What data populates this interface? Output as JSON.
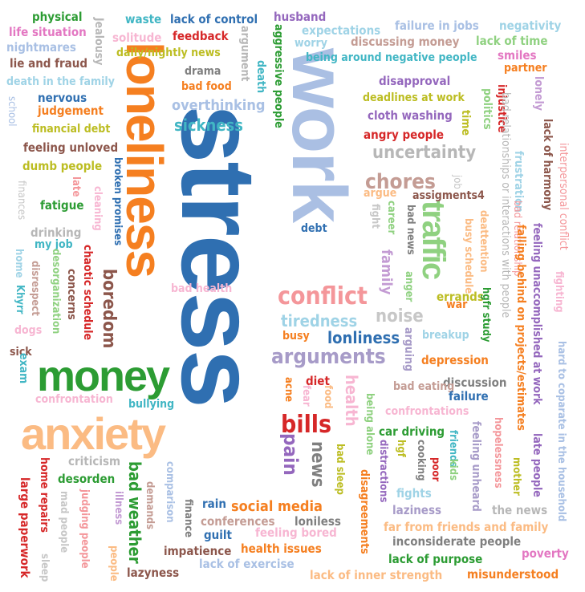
{
  "words": [
    {
      "text": "stress",
      "color": "#2f6fb1"
    },
    {
      "text": "work",
      "color": "#aabfe3"
    },
    {
      "text": "loneliness",
      "color": "#f57f20"
    },
    {
      "text": "anxiety",
      "color": "#fbbb83"
    },
    {
      "text": "money",
      "color": "#2c9c33"
    },
    {
      "text": "traffic",
      "color": "#8fd180"
    },
    {
      "text": "conflict",
      "color": "#f4969a"
    },
    {
      "text": "arguments",
      "color": "#a79bc8"
    },
    {
      "text": "bills",
      "color": "#d62728"
    },
    {
      "text": "boredom",
      "color": "#8c564b"
    },
    {
      "text": "pain",
      "color": "#9467bd"
    },
    {
      "text": "chores",
      "color": "#c49c94"
    },
    {
      "text": "uncertainty",
      "color": "#b7b7b7"
    },
    {
      "text": "sickness",
      "color": "#41b6c4"
    },
    {
      "text": "tiredness",
      "color": "#9fd3e6"
    },
    {
      "text": "overthinking",
      "color": "#a9c0e4"
    },
    {
      "text": "noise",
      "color": "#c7c7c7"
    },
    {
      "text": "family",
      "color": "#c39bd3"
    },
    {
      "text": "health",
      "color": "#f7b6d2"
    },
    {
      "text": "news",
      "color": "#7f7f7f"
    },
    {
      "text": "lonliness",
      "color": "#2f6fb1"
    },
    {
      "text": "social media",
      "color": "#f57f20"
    },
    {
      "text": "bad weather",
      "color": "#2c9c33"
    },
    {
      "text": "physical",
      "color": "#2c9c33"
    },
    {
      "text": "life situation",
      "color": "#e377c2"
    },
    {
      "text": "nightmares",
      "color": "#a9c0e4"
    },
    {
      "text": "lie and fraud",
      "color": "#8c564b"
    },
    {
      "text": "death in the family",
      "color": "#9fd3e6"
    },
    {
      "text": "nervous",
      "color": "#2f6fb1"
    },
    {
      "text": "judgement",
      "color": "#f57f20"
    },
    {
      "text": "financial debt",
      "color": "#bcbd22"
    },
    {
      "text": "feeling unloved",
      "color": "#8c564b"
    },
    {
      "text": "dumb people",
      "color": "#bcbd22"
    },
    {
      "text": "fatigue",
      "color": "#2c9c33"
    },
    {
      "text": "drinking",
      "color": "#b7b7b7"
    },
    {
      "text": "my job",
      "color": "#41b6c4"
    },
    {
      "text": "waste",
      "color": "#41b6c4"
    },
    {
      "text": "lack of control",
      "color": "#2f6fb1"
    },
    {
      "text": "husband",
      "color": "#9467bd"
    },
    {
      "text": "expectations",
      "color": "#9fd3e6"
    },
    {
      "text": "failure in jobs",
      "color": "#a9c0e4"
    },
    {
      "text": "negativity",
      "color": "#9fd3e6"
    },
    {
      "text": "solitude",
      "color": "#f7b6d2"
    },
    {
      "text": "feedback",
      "color": "#d62728"
    },
    {
      "text": "worry",
      "color": "#9fd3e6"
    },
    {
      "text": "discussing money",
      "color": "#c49c94"
    },
    {
      "text": "lack of time",
      "color": "#8fd180"
    },
    {
      "text": "daily/nightly news",
      "color": "#bcbd22"
    },
    {
      "text": "being around negative people",
      "color": "#41b6c4"
    },
    {
      "text": "smiles",
      "color": "#e377c2"
    },
    {
      "text": "partner",
      "color": "#f57f20"
    },
    {
      "text": "drama",
      "color": "#7f7f7f"
    },
    {
      "text": "bad food",
      "color": "#f57f20"
    },
    {
      "text": "disapproval",
      "color": "#9467bd"
    },
    {
      "text": "deadlines at work",
      "color": "#bcbd22"
    },
    {
      "text": "cloth washing",
      "color": "#9467bd"
    },
    {
      "text": "angry people",
      "color": "#d62728"
    },
    {
      "text": "assigments4",
      "color": "#8c564b"
    },
    {
      "text": "debt",
      "color": "#2f6fb1"
    },
    {
      "text": "bad health",
      "color": "#f7b6d2"
    },
    {
      "text": "errands",
      "color": "#bcbd22"
    },
    {
      "text": "busy",
      "color": "#f57f20"
    },
    {
      "text": "breakup",
      "color": "#9fd3e6"
    },
    {
      "text": "depression",
      "color": "#f57f20"
    },
    {
      "text": "sick",
      "color": "#8c564b"
    },
    {
      "text": "confrontation",
      "color": "#f7b6d2"
    },
    {
      "text": "bullying",
      "color": "#41b6c4"
    },
    {
      "text": "diet",
      "color": "#d62728"
    },
    {
      "text": "discussion",
      "color": "#7f7f7f"
    },
    {
      "text": "bad eating",
      "color": "#c49c94"
    },
    {
      "text": "failure",
      "color": "#2f6fb1"
    },
    {
      "text": "confrontations",
      "color": "#f7b6d2"
    },
    {
      "text": "car driving",
      "color": "#2c9c33"
    },
    {
      "text": "desorden",
      "color": "#2c9c33"
    },
    {
      "text": "criticism",
      "color": "#b7b7b7"
    },
    {
      "text": "rain",
      "color": "#2f6fb1"
    },
    {
      "text": "conferences",
      "color": "#c49c94"
    },
    {
      "text": "loniless",
      "color": "#7f7f7f"
    },
    {
      "text": "guilt",
      "color": "#2f6fb1"
    },
    {
      "text": "feeling bored",
      "color": "#f7b6d2"
    },
    {
      "text": "impatience",
      "color": "#8c564b"
    },
    {
      "text": "health issues",
      "color": "#f57f20"
    },
    {
      "text": "lack of exercise",
      "color": "#a9c0e4"
    },
    {
      "text": "lazyness",
      "color": "#8c564b"
    },
    {
      "text": "fights",
      "color": "#9fd3e6"
    },
    {
      "text": "laziness",
      "color": "#a79bc8"
    },
    {
      "text": "the news",
      "color": "#b7b7b7"
    },
    {
      "text": "far from friends and family",
      "color": "#fbbb83"
    },
    {
      "text": "inconsiderate people",
      "color": "#7f7f7f"
    },
    {
      "text": "poverty",
      "color": "#e377c2"
    },
    {
      "text": "lack of purpose",
      "color": "#2c9c33"
    },
    {
      "text": "misunderstood",
      "color": "#f57f20"
    },
    {
      "text": "lack of inner strength",
      "color": "#fbbb83"
    },
    {
      "text": "argue",
      "color": "#fbbb83"
    },
    {
      "text": "exam",
      "color": "#41b6c4"
    },
    {
      "text": "dogs",
      "color": "#f7b6d2"
    },
    {
      "text": "Jealousy",
      "color": "#b7b7b7"
    },
    {
      "text": "argument",
      "color": "#b7b7b7"
    },
    {
      "text": "aggressive people",
      "color": "#2c9c33"
    },
    {
      "text": "death",
      "color": "#41b6c4"
    },
    {
      "text": "lonely",
      "color": "#c39bd3"
    },
    {
      "text": "injustice",
      "color": "#d62728"
    },
    {
      "text": "politics",
      "color": "#8fd180"
    },
    {
      "text": "bad relationships or interactions with people",
      "color": "#b7b7b7"
    },
    {
      "text": "time",
      "color": "#bcbd22"
    },
    {
      "text": "frustration",
      "color": "#9fd3e6"
    },
    {
      "text": "lack of harmony",
      "color": "#8c564b"
    },
    {
      "text": "interpersonal conflict",
      "color": "#f4969a"
    },
    {
      "text": "school",
      "color": "#a9c0e4"
    },
    {
      "text": "finances",
      "color": "#c7c7c7"
    },
    {
      "text": "late",
      "color": "#f4969a"
    },
    {
      "text": "cleaning",
      "color": "#f7b6d2"
    },
    {
      "text": "broken promises",
      "color": "#2f6fb1"
    },
    {
      "text": "home",
      "color": "#9fd3e6"
    },
    {
      "text": "Khyrr",
      "color": "#41b6c4"
    },
    {
      "text": "desorganization",
      "color": "#8fd180"
    },
    {
      "text": "disrespect",
      "color": "#c49c94"
    },
    {
      "text": "chaotic schedule",
      "color": "#d62728"
    },
    {
      "text": "concerns",
      "color": "#8c564b"
    },
    {
      "text": "job",
      "color": "#c7c7c7"
    },
    {
      "text": "fight",
      "color": "#c7c7c7"
    },
    {
      "text": "career",
      "color": "#8fd180"
    },
    {
      "text": "bad news",
      "color": "#7f7f7f"
    },
    {
      "text": "anger",
      "color": "#8fd180"
    },
    {
      "text": "war",
      "color": "#f57f20"
    },
    {
      "text": "arguing",
      "color": "#a79bc8"
    },
    {
      "text": "deattention",
      "color": "#fbbb83"
    },
    {
      "text": "busy schedule",
      "color": "#fbbb83"
    },
    {
      "text": "hgfr study",
      "color": "#2c9c33"
    },
    {
      "text": "bad relationship",
      "color": "#f4969a"
    },
    {
      "text": "falling behind on projects/estimates",
      "color": "#f57f20"
    },
    {
      "text": "feeling unaccomplished at work",
      "color": "#9467bd"
    },
    {
      "text": "fighting",
      "color": "#f7b6d2"
    },
    {
      "text": "hard to coparate in the household",
      "color": "#a9c0e4"
    },
    {
      "text": "acne",
      "color": "#f57f20"
    },
    {
      "text": "fear",
      "color": "#f7b6d2"
    },
    {
      "text": "food",
      "color": "#fbbb83"
    },
    {
      "text": "being alone",
      "color": "#8fd180"
    },
    {
      "text": "bad sleep",
      "color": "#bcbd22"
    },
    {
      "text": "hgf",
      "color": "#bcbd22"
    },
    {
      "text": "distractions",
      "color": "#9467bd"
    },
    {
      "text": "cooking",
      "color": "#7f7f7f"
    },
    {
      "text": "poor",
      "color": "#d62728"
    },
    {
      "text": "disagreements",
      "color": "#f57f20"
    },
    {
      "text": "friends",
      "color": "#41b6c4"
    },
    {
      "text": "kids",
      "color": "#8fd180"
    },
    {
      "text": "feeling unheard",
      "color": "#a79bc8"
    },
    {
      "text": "hopelessness",
      "color": "#f4969a"
    },
    {
      "text": "mother",
      "color": "#bcbd22"
    },
    {
      "text": "late people",
      "color": "#9467bd"
    },
    {
      "text": "large paperwork",
      "color": "#d62728"
    },
    {
      "text": "home repairs",
      "color": "#d62728"
    },
    {
      "text": "mad people",
      "color": "#c7c7c7"
    },
    {
      "text": "sleep",
      "color": "#c7c7c7"
    },
    {
      "text": "judging people",
      "color": "#f4969a"
    },
    {
      "text": "illness",
      "color": "#c39bd3"
    },
    {
      "text": "demands",
      "color": "#c49c94"
    },
    {
      "text": "comparison",
      "color": "#a9c0e4"
    },
    {
      "text": "people",
      "color": "#fbbb83"
    },
    {
      "text": "finance",
      "color": "#7f7f7f"
    }
  ]
}
